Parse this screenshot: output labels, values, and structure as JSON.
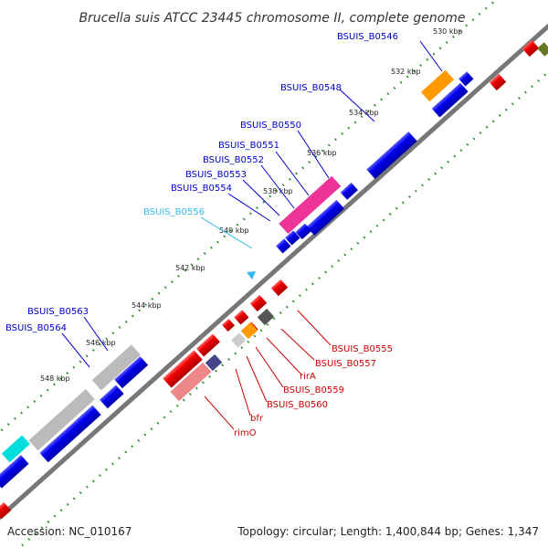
{
  "title": "Brucella suis ATCC 23445 chromosome II, complete genome",
  "footer": {
    "accession": "Accession: NC_010167",
    "summary": "Topology: circular; Length: 1,400,844 bp; Genes: 1,347"
  },
  "ticks": [
    "530 kbp",
    "532 kbp",
    "534 kbp",
    "536 kbp",
    "538 kbp",
    "540 kbp",
    "542 kbp",
    "544 kbp",
    "546 kbp",
    "548 kbp"
  ],
  "labels_upper": [
    {
      "text": "BSUIS_B0546",
      "color": "#0000cc"
    },
    {
      "text": "BSUIS_B0548",
      "color": "#0000cc"
    },
    {
      "text": "BSUIS_B0550",
      "color": "#0000cc"
    },
    {
      "text": "BSUIS_B0551",
      "color": "#0000cc"
    },
    {
      "text": "BSUIS_B0552",
      "color": "#0000cc"
    },
    {
      "text": "BSUIS_B0553",
      "color": "#0000cc"
    },
    {
      "text": "BSUIS_B0554",
      "color": "#0000cc"
    },
    {
      "text": "BSUIS_B0556",
      "color": "#33bbee"
    },
    {
      "text": "BSUIS_B0563",
      "color": "#0000cc"
    },
    {
      "text": "BSUIS_B0564",
      "color": "#0000cc"
    }
  ],
  "labels_lower": [
    {
      "text": "BSUIS_B0555",
      "color": "#cc0000"
    },
    {
      "text": "BSUIS_B0557",
      "color": "#cc0000"
    },
    {
      "text": "rirA",
      "color": "#cc0000"
    },
    {
      "text": "BSUIS_B0559",
      "color": "#cc0000"
    },
    {
      "text": "BSUIS_B0560",
      "color": "#cc0000"
    },
    {
      "text": "bfr",
      "color": "#cc0000"
    },
    {
      "text": "rimO",
      "color": "#cc0000"
    }
  ],
  "colors": {
    "forward_gene": "#0000ee",
    "reverse_gene": "#ee0000",
    "backbone": "#777777",
    "tick_dots": "#228822"
  }
}
